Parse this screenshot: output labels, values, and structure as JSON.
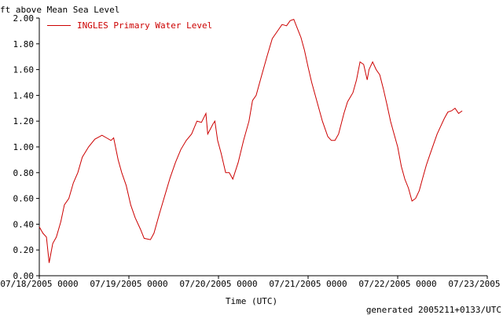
{
  "chart_data": {
    "type": "line",
    "ylabel": "ft above Mean Sea Level",
    "xlabel": "Time (UTC)",
    "footer": "generated 2005211+0133/UTC",
    "ylim": [
      0,
      2.0
    ],
    "yticks": [
      "0.00",
      "0.20",
      "0.40",
      "0.60",
      "0.80",
      "1.00",
      "1.20",
      "1.40",
      "1.60",
      "1.80",
      "2.00"
    ],
    "xlim": [
      0,
      5
    ],
    "xticks": [
      "07/18/2005 0000",
      "07/19/2005 0000",
      "07/20/2005 0000",
      "07/21/2005 0000",
      "07/22/2005 0000",
      "07/23/2005 0000"
    ],
    "grid": false,
    "legend_position": "top-left",
    "series": [
      {
        "name": "INGLES Primary Water Level",
        "color": "#cc0000",
        "x_unit": "days since 07/18/2005 0000",
        "points": [
          [
            0.0,
            0.38
          ],
          [
            0.04,
            0.33
          ],
          [
            0.08,
            0.3
          ],
          [
            0.11,
            0.1
          ],
          [
            0.15,
            0.25
          ],
          [
            0.19,
            0.3
          ],
          [
            0.24,
            0.42
          ],
          [
            0.28,
            0.55
          ],
          [
            0.33,
            0.6
          ],
          [
            0.38,
            0.72
          ],
          [
            0.43,
            0.8
          ],
          [
            0.48,
            0.92
          ],
          [
            0.55,
            1.0
          ],
          [
            0.62,
            1.06
          ],
          [
            0.7,
            1.09
          ],
          [
            0.75,
            1.07
          ],
          [
            0.8,
            1.05
          ],
          [
            0.83,
            1.07
          ],
          [
            0.88,
            0.9
          ],
          [
            0.92,
            0.8
          ],
          [
            0.97,
            0.7
          ],
          [
            1.02,
            0.55
          ],
          [
            1.07,
            0.45
          ],
          [
            1.13,
            0.36
          ],
          [
            1.17,
            0.29
          ],
          [
            1.24,
            0.28
          ],
          [
            1.28,
            0.33
          ],
          [
            1.34,
            0.48
          ],
          [
            1.4,
            0.62
          ],
          [
            1.46,
            0.76
          ],
          [
            1.52,
            0.88
          ],
          [
            1.58,
            0.98
          ],
          [
            1.64,
            1.05
          ],
          [
            1.7,
            1.1
          ],
          [
            1.76,
            1.2
          ],
          [
            1.81,
            1.19
          ],
          [
            1.86,
            1.26
          ],
          [
            1.88,
            1.1
          ],
          [
            1.94,
            1.18
          ],
          [
            1.96,
            1.2
          ],
          [
            1.99,
            1.05
          ],
          [
            2.03,
            0.95
          ],
          [
            2.08,
            0.8
          ],
          [
            2.12,
            0.8
          ],
          [
            2.16,
            0.75
          ],
          [
            2.22,
            0.88
          ],
          [
            2.28,
            1.05
          ],
          [
            2.34,
            1.2
          ],
          [
            2.38,
            1.36
          ],
          [
            2.42,
            1.4
          ],
          [
            2.48,
            1.55
          ],
          [
            2.54,
            1.7
          ],
          [
            2.6,
            1.84
          ],
          [
            2.66,
            1.9
          ],
          [
            2.71,
            1.95
          ],
          [
            2.76,
            1.94
          ],
          [
            2.8,
            1.98
          ],
          [
            2.84,
            1.99
          ],
          [
            2.88,
            1.92
          ],
          [
            2.92,
            1.85
          ],
          [
            2.96,
            1.75
          ],
          [
            3.0,
            1.62
          ],
          [
            3.04,
            1.5
          ],
          [
            3.1,
            1.35
          ],
          [
            3.16,
            1.2
          ],
          [
            3.22,
            1.08
          ],
          [
            3.26,
            1.05
          ],
          [
            3.3,
            1.05
          ],
          [
            3.34,
            1.1
          ],
          [
            3.4,
            1.26
          ],
          [
            3.44,
            1.35
          ],
          [
            3.5,
            1.42
          ],
          [
            3.54,
            1.52
          ],
          [
            3.58,
            1.66
          ],
          [
            3.62,
            1.64
          ],
          [
            3.66,
            1.52
          ],
          [
            3.68,
            1.6
          ],
          [
            3.72,
            1.66
          ],
          [
            3.76,
            1.6
          ],
          [
            3.8,
            1.56
          ],
          [
            3.84,
            1.45
          ],
          [
            3.88,
            1.33
          ],
          [
            3.92,
            1.2
          ],
          [
            3.96,
            1.1
          ],
          [
            4.0,
            1.0
          ],
          [
            4.04,
            0.85
          ],
          [
            4.08,
            0.75
          ],
          [
            4.12,
            0.68
          ],
          [
            4.16,
            0.58
          ],
          [
            4.2,
            0.6
          ],
          [
            4.24,
            0.66
          ],
          [
            4.28,
            0.76
          ],
          [
            4.32,
            0.86
          ],
          [
            4.36,
            0.94
          ],
          [
            4.4,
            1.02
          ],
          [
            4.44,
            1.1
          ],
          [
            4.48,
            1.16
          ],
          [
            4.52,
            1.22
          ],
          [
            4.56,
            1.27
          ],
          [
            4.6,
            1.28
          ],
          [
            4.64,
            1.3
          ],
          [
            4.68,
            1.26
          ],
          [
            4.72,
            1.28
          ]
        ]
      }
    ]
  }
}
